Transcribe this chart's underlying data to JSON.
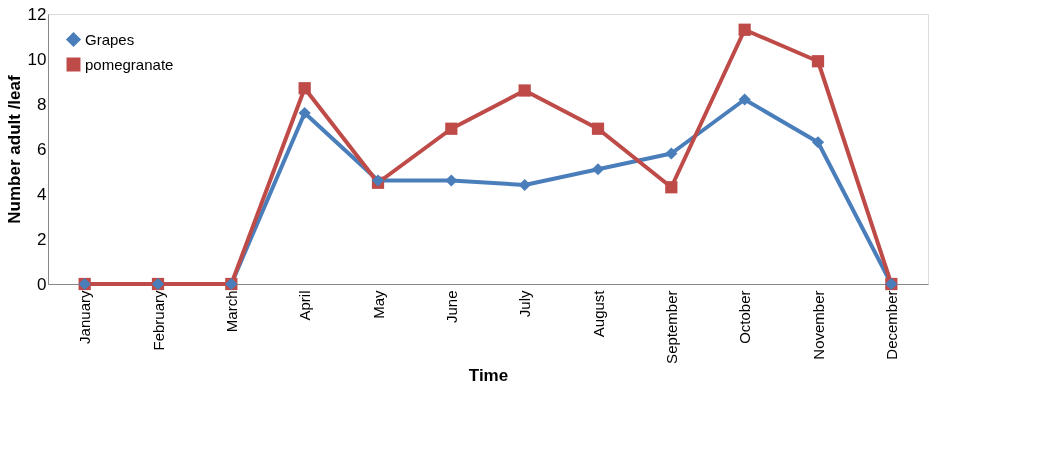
{
  "chart_data": {
    "type": "line",
    "xlabel": "Time",
    "ylabel": "Number adult /leaf",
    "categories": [
      "January",
      "February",
      "March",
      "April",
      "May",
      "June",
      "July",
      "August",
      "September",
      "October",
      "November",
      "December"
    ],
    "series": [
      {
        "name": "Grapes",
        "color": "#4a7ebb",
        "marker": "diamond",
        "values": [
          0,
          0,
          0,
          7.6,
          4.6,
          4.6,
          4.4,
          5.1,
          5.8,
          8.2,
          6.3,
          0
        ]
      },
      {
        "name": "pomegranate",
        "color": "#be4b48",
        "marker": "square",
        "values": [
          0,
          0,
          0,
          8.7,
          4.5,
          6.9,
          8.6,
          6.9,
          4.3,
          11.3,
          9.9,
          0
        ]
      }
    ],
    "ylim": [
      0,
      12
    ],
    "yticks": [
      0,
      2,
      4,
      6,
      8,
      10,
      12
    ],
    "grid": false,
    "legend": "top left"
  }
}
